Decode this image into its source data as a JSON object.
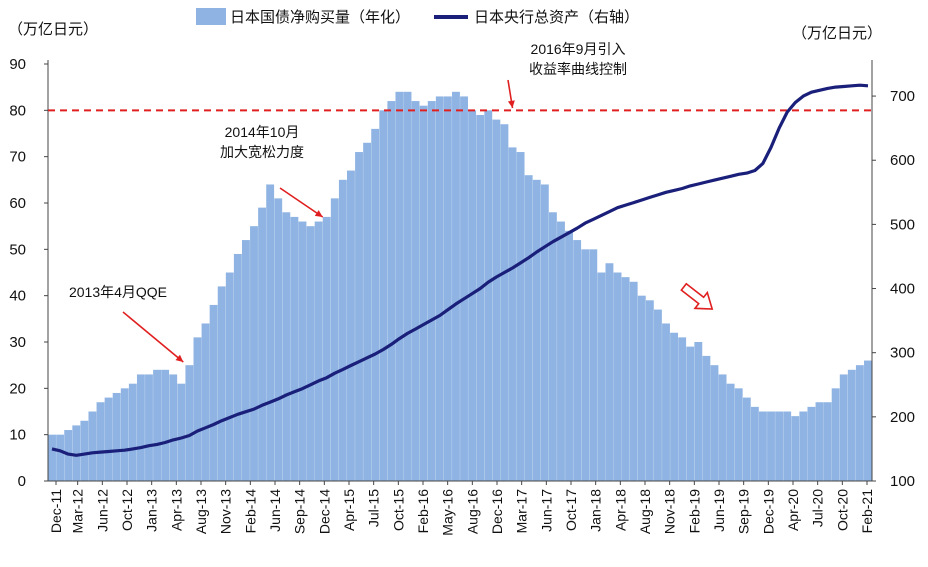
{
  "chart_data": {
    "type": "bar+line",
    "legend": [
      {
        "name": "日本国债净购买量（年化）",
        "type": "bar",
        "color": "#8fb4e3"
      },
      {
        "name": "日本央行总资产（右轴）",
        "type": "line",
        "color": "#1a1f7a"
      }
    ],
    "legend_position": "top",
    "left_unit": "（万亿日元）",
    "right_unit": "（万亿日元）",
    "left_ylim": [
      0,
      90
    ],
    "left_ticks": [
      "0",
      "10",
      "20",
      "30",
      "40",
      "50",
      "60",
      "70",
      "80",
      "90"
    ],
    "right_ylim": [
      100,
      750
    ],
    "right_ticks": [
      "100",
      "200",
      "300",
      "400",
      "500",
      "600",
      "700"
    ],
    "x_tick_labels": [
      "Dec-11",
      "Mar-12",
      "Jun-12",
      "Oct-12",
      "Jan-13",
      "Apr-13",
      "Aug-13",
      "Nov-13",
      "Feb-14",
      "Jun-14",
      "Sep-14",
      "Dec-14",
      "Apr-15",
      "Jul-15",
      "Oct-15",
      "Feb-16",
      "May-16",
      "Aug-16",
      "Dec-16",
      "Mar-17",
      "Jun-17",
      "Oct-17",
      "Jan-18",
      "Apr-18",
      "Aug-18",
      "Nov-18",
      "Feb-19",
      "Jun-19",
      "Sep-19",
      "Dec-19",
      "Apr-20",
      "Jul-20",
      "Oct-20",
      "Feb-21"
    ],
    "bar_values": [
      10,
      10,
      11,
      12,
      13,
      15,
      17,
      18,
      19,
      20,
      21,
      23,
      23,
      24,
      24,
      23,
      21,
      25,
      31,
      34,
      38,
      42,
      45,
      49,
      52,
      55,
      59,
      64,
      61,
      58,
      57,
      56,
      55,
      56,
      57,
      61,
      65,
      67,
      71,
      73,
      76,
      80,
      82,
      84,
      84,
      82,
      81,
      82,
      83,
      83,
      84,
      83,
      80,
      79,
      80,
      78,
      77,
      72,
      71,
      66,
      65,
      64,
      58,
      56,
      54,
      52,
      50,
      50,
      45,
      47,
      45,
      44,
      43,
      40,
      39,
      37,
      34,
      32,
      31,
      29,
      30,
      27,
      25,
      23,
      21,
      20,
      18,
      16,
      15,
      15,
      15,
      15,
      14,
      15,
      16,
      17,
      17,
      20,
      23,
      24,
      25,
      26
    ],
    "line_values": [
      150,
      147,
      142,
      140,
      142,
      144,
      145,
      146,
      147,
      148,
      150,
      152,
      155,
      157,
      160,
      164,
      167,
      171,
      178,
      183,
      188,
      194,
      199,
      204,
      208,
      212,
      218,
      223,
      228,
      234,
      239,
      244,
      250,
      256,
      261,
      268,
      274,
      280,
      286,
      292,
      298,
      305,
      313,
      322,
      330,
      337,
      344,
      351,
      358,
      367,
      376,
      384,
      392,
      400,
      410,
      418,
      425,
      432,
      440,
      448,
      457,
      465,
      473,
      480,
      487,
      494,
      502,
      508,
      514,
      520,
      526,
      530,
      534,
      538,
      542,
      546,
      550,
      553,
      556,
      560,
      563,
      566,
      569,
      572,
      575,
      578,
      580,
      584,
      595,
      620,
      650,
      675,
      690,
      700,
      706,
      709,
      712,
      714,
      715,
      716,
      717,
      716
    ],
    "reference_line": {
      "value": 80,
      "axis": "left",
      "style": "dashed",
      "color": "#e02020"
    },
    "annotations": [
      {
        "text": "2013年4月QQE",
        "at": 16
      },
      {
        "text": "2014年10月\n加大宽松力度",
        "at": 34
      },
      {
        "text": "2016年9月引入\n收益率曲线控制",
        "at": 57
      }
    ]
  }
}
